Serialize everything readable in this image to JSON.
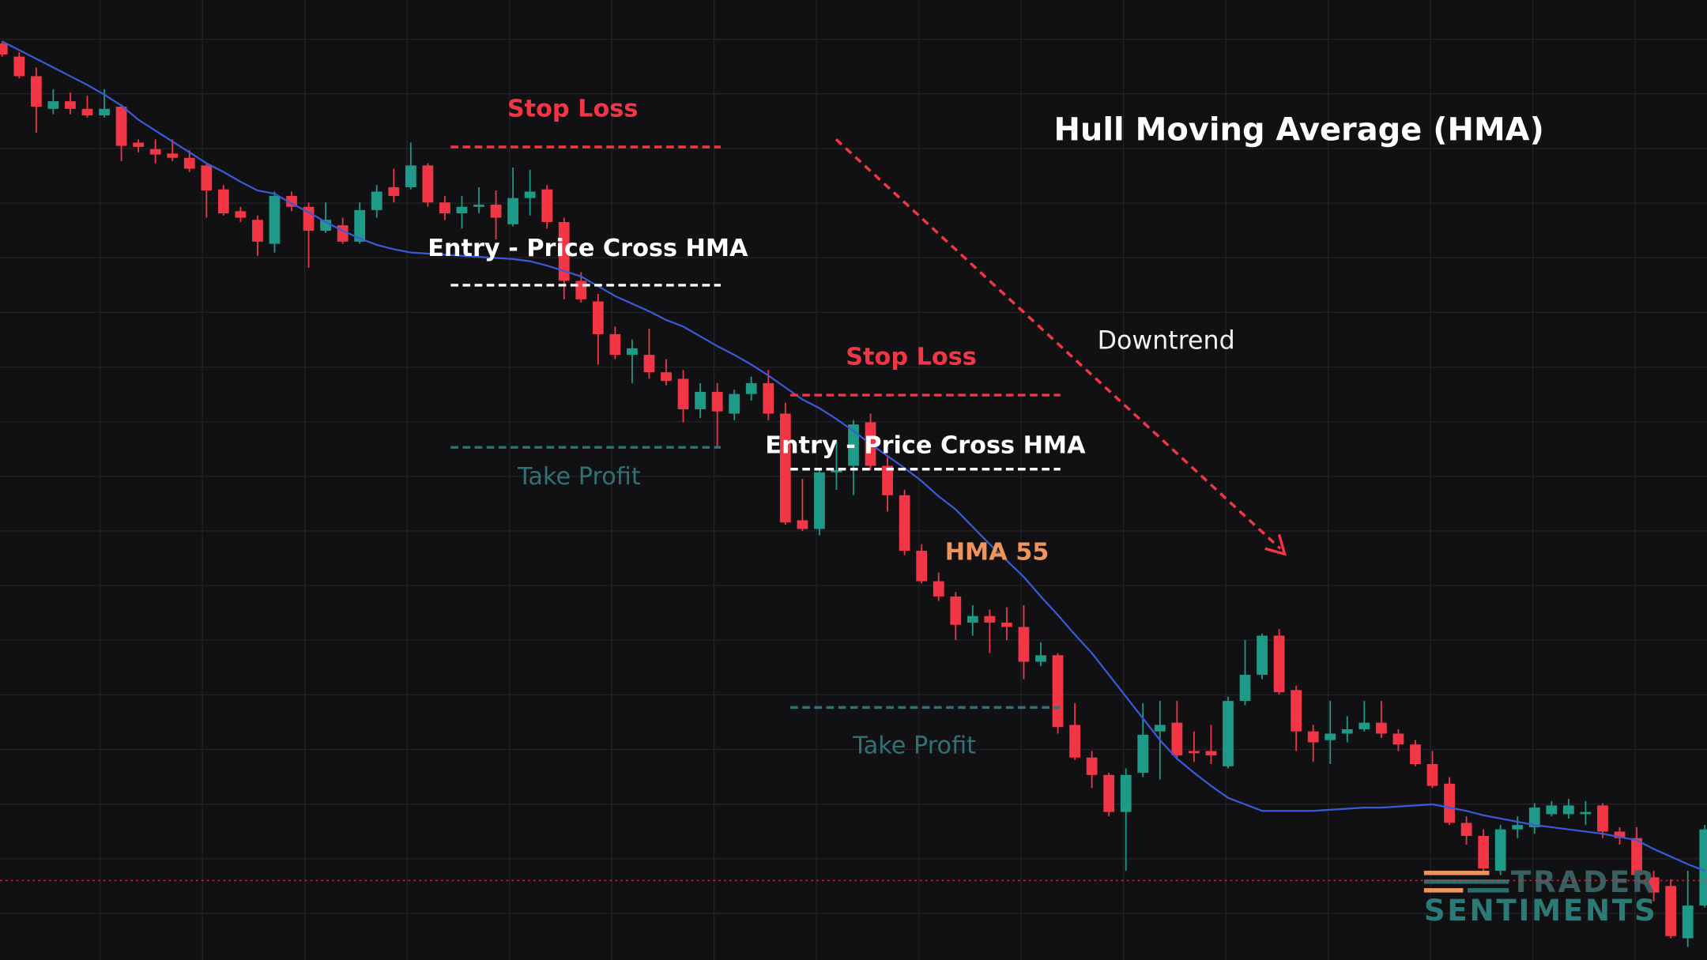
{
  "chart_data": {
    "type": "candlestick",
    "title": "Hull Moving Average (HMA)",
    "ylim": [
      0,
      882
    ],
    "grid": true,
    "up_color": "#1e9a88",
    "down_color": "#f23645",
    "open": [
      842,
      830,
      812,
      782,
      789,
      782,
      776,
      784,
      751,
      745,
      741,
      737,
      730,
      708,
      688,
      680,
      658,
      702,
      692,
      670,
      675,
      660,
      689,
      710,
      710,
      730,
      696,
      686,
      692,
      694,
      676,
      700,
      708,
      678,
      624,
      605,
      575,
      556,
      556,
      540,
      534,
      506,
      522,
      502,
      520,
      530,
      502,
      404,
      396,
      448,
      454,
      494,
      454,
      427,
      376,
      348,
      334,
      310,
      316,
      310,
      306,
      274,
      280,
      216,
      186,
      170,
      136,
      172,
      210,
      218,
      192,
      192,
      178,
      238,
      262,
      298,
      248,
      210,
      202,
      208,
      212,
      218,
      208,
      198,
      180,
      162,
      126,
      114,
      82,
      120,
      122,
      134,
      134,
      134,
      142,
      118,
      112,
      76,
      68,
      20,
      50
    ],
    "high": [
      844,
      834,
      820,
      800,
      797,
      794,
      800,
      786,
      754,
      754,
      754,
      744,
      732,
      712,
      692,
      684,
      706,
      706,
      696,
      696,
      682,
      696,
      712,
      727,
      751,
      732,
      702,
      702,
      710,
      707,
      728,
      726,
      712,
      682,
      632,
      612,
      582,
      570,
      580,
      552,
      542,
      530,
      530,
      524,
      536,
      542,
      512,
      442,
      452,
      477,
      496,
      502,
      462,
      432,
      382,
      356,
      338,
      326,
      322,
      324,
      326,
      292,
      282,
      236,
      192,
      172,
      176,
      236,
      238,
      238,
      210,
      216,
      242,
      294,
      300,
      304,
      252,
      216,
      238,
      224,
      238,
      238,
      212,
      202,
      192,
      168,
      132,
      120,
      124,
      132,
      144,
      146,
      148,
      146,
      144,
      122,
      122,
      82,
      74,
      82,
      124
    ],
    "low": [
      830,
      810,
      760,
      777,
      777,
      774,
      774,
      734,
      742,
      732,
      734,
      724,
      682,
      684,
      678,
      647,
      650,
      688,
      636,
      668,
      658,
      658,
      682,
      696,
      708,
      692,
      680,
      672,
      686,
      662,
      674,
      684,
      672,
      607,
      604,
      547,
      552,
      530,
      534,
      528,
      494,
      498,
      472,
      496,
      514,
      496,
      400,
      394,
      390,
      432,
      427,
      450,
      412,
      372,
      346,
      330,
      294,
      298,
      282,
      294,
      258,
      270,
      208,
      184,
      158,
      132,
      82,
      168,
      166,
      184,
      182,
      180,
      176,
      234,
      258,
      244,
      192,
      182,
      180,
      200,
      210,
      204,
      192,
      178,
      158,
      124,
      106,
      82,
      78,
      112,
      116,
      132,
      130,
      124,
      112,
      106,
      74,
      54,
      20,
      12,
      48
    ],
    "close": [
      832,
      812,
      784,
      789,
      782,
      776,
      782,
      748,
      747,
      740,
      737,
      727,
      707,
      686,
      682,
      660,
      702,
      692,
      670,
      680,
      660,
      689,
      706,
      702,
      730,
      696,
      686,
      692,
      694,
      682,
      700,
      706,
      678,
      624,
      607,
      575,
      556,
      562,
      540,
      532,
      506,
      522,
      504,
      520,
      530,
      502,
      402,
      396,
      448,
      450,
      492,
      454,
      427,
      376,
      348,
      334,
      308,
      316,
      310,
      306,
      274,
      280,
      214,
      186,
      170,
      136,
      170,
      207,
      216,
      188,
      190,
      188,
      238,
      262,
      298,
      246,
      210,
      200,
      208,
      212,
      218,
      208,
      198,
      180,
      160,
      126,
      114,
      84,
      120,
      124,
      140,
      142,
      142,
      136,
      118,
      112,
      78,
      62,
      22,
      50,
      120
    ],
    "series": [
      {
        "name": "HMA 55",
        "color": "#3a5bd9",
        "label_color": "#f0955a",
        "values": [
          844,
          836,
          828,
          820,
          812,
          804,
          795,
          785,
          772,
          762,
          752,
          742,
          732,
          724,
          715,
          707,
          704,
          695,
          687,
          678,
          670,
          663,
          657,
          653,
          650,
          649,
          648,
          647,
          646,
          645,
          644,
          642,
          638,
          633,
          628,
          619,
          610,
          603,
          596,
          588,
          582,
          573,
          564,
          556,
          547,
          537,
          526,
          515,
          507,
          497,
          486,
          474,
          463,
          452,
          440,
          426,
          414,
          398,
          382,
          367,
          352,
          334,
          317,
          299,
          282,
          262,
          242,
          222,
          202,
          185,
          172,
          160,
          149,
          143,
          137,
          137,
          137,
          137,
          138,
          139,
          140,
          140,
          141,
          142,
          143,
          140,
          137,
          133,
          130,
          127,
          124,
          122,
          120,
          118,
          116,
          113,
          110,
          102,
          95,
          88,
          82
        ]
      }
    ],
    "levels": [
      {
        "label": "Stop Loss",
        "value": 747,
        "color": "#f23645"
      },
      {
        "label": "Entry - Price Cross HMA",
        "value": 620,
        "color": "#ffffff"
      },
      {
        "label": "Take Profit",
        "value": 471,
        "color": "#2e7276"
      },
      {
        "label": "Stop Loss",
        "value": 519,
        "color": "#f23645"
      },
      {
        "label": "Entry - Price Cross HMA",
        "value": 451,
        "color": "#ffffff"
      },
      {
        "label": "Take Profit",
        "value": 232,
        "color": "#2e7276"
      }
    ],
    "price_line": 73,
    "annotation": "Downtrend",
    "watermark": [
      "TRADER",
      "SENTIMENTS"
    ]
  }
}
